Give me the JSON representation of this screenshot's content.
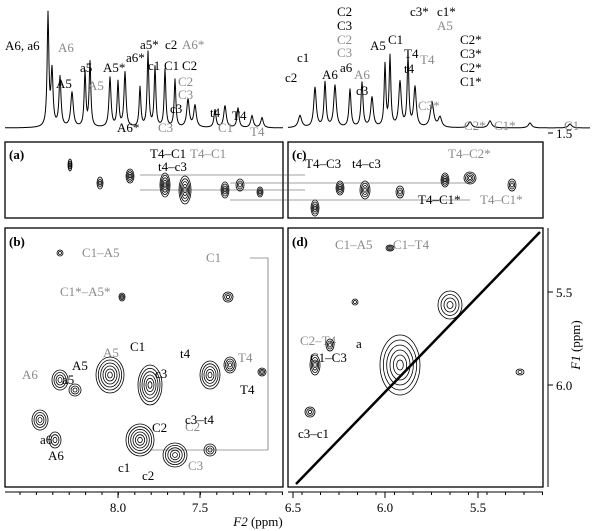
{
  "spectrum_left": {
    "labels": [
      "A6, a6",
      "A6",
      "A5",
      "a5",
      "A5",
      "A5*",
      "a5*",
      "a6*",
      "c1",
      "c2",
      "A6*",
      "C1",
      "C2",
      "C2",
      "C3",
      "c3",
      "C3",
      "A6*",
      "t4",
      "C1",
      "T4",
      "T4"
    ]
  },
  "spectrum_right": {
    "labels": [
      "C2",
      "C3",
      "C2",
      "C3",
      "c1",
      "c2",
      "A6",
      "a6",
      "A6",
      "c3",
      "A5",
      "C1",
      "T4",
      "t4",
      "c3*",
      "c1*",
      "A5",
      "T4",
      "C2*",
      "C3*",
      "C2*",
      "C1*",
      "C3*",
      "C2*",
      "C1*",
      "C1"
    ]
  },
  "panel_a": {
    "label": "(a)",
    "annotations": [
      "T4–C1",
      "T4–C1",
      "t4–c3"
    ]
  },
  "panel_b": {
    "label": "(b)",
    "annotations": [
      "C1–A5",
      "C1",
      "C1*–A5*",
      "A5",
      "C1",
      "T4",
      "t4",
      "c3",
      "T4",
      "A6",
      "a5",
      "A5",
      "a6",
      "A6",
      "C2",
      "C2",
      "C3",
      "c3–t4",
      "c1",
      "c2"
    ]
  },
  "panel_c": {
    "label": "(c)",
    "annotations": [
      "T4–C3",
      "t4–c3",
      "T4–C2*",
      "T4–C1*",
      "T4–C1*"
    ]
  },
  "panel_d": {
    "label": "(d)",
    "annotations": [
      "C1–A5",
      "C1–T4",
      "C2–T4",
      "C1–C3",
      "c3–c1",
      "a"
    ]
  },
  "f1_axis": {
    "title_italic": "F1",
    "title_unit": " (ppm)",
    "ticks": [
      "1.5",
      "5.5",
      "6.0"
    ]
  },
  "f2_axis": {
    "title_italic": "F2",
    "title_unit": " (ppm)",
    "ticks": [
      "8.0",
      "7.5",
      "6.5",
      "6.0",
      "5.5"
    ]
  }
}
